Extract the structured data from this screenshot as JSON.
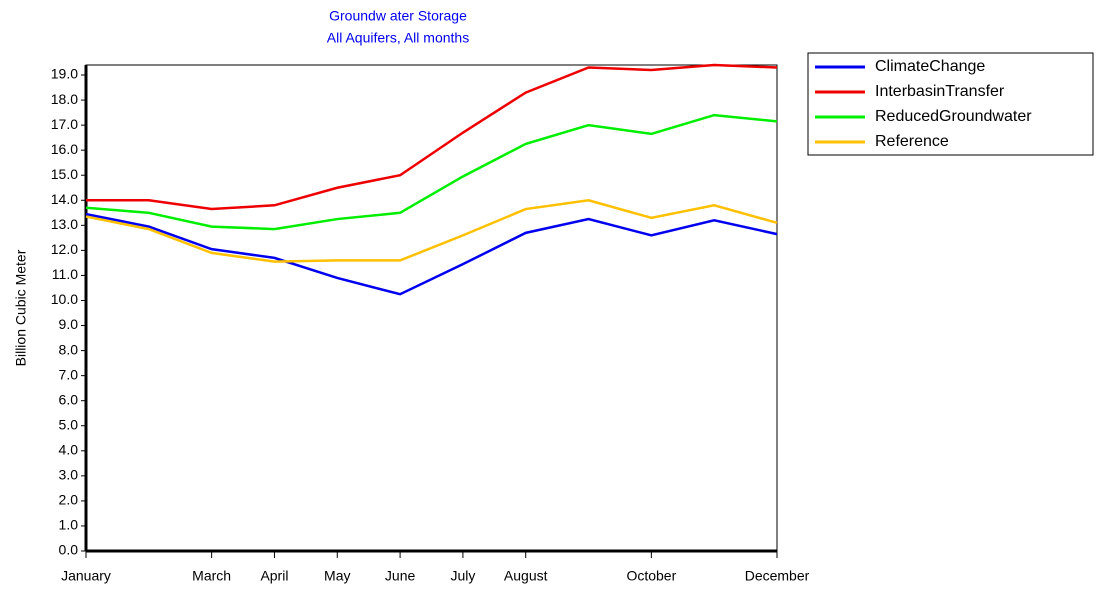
{
  "chart_data": {
    "type": "line",
    "title": "Groundw ater Storage",
    "subtitle": "All Aquifers,  All months",
    "y_label": "Billion Cubic Meter",
    "categories": [
      "January",
      null,
      "March",
      "April",
      "May",
      "June",
      "July",
      "August",
      null,
      "October",
      null,
      "December"
    ],
    "series": [
      {
        "name": "ClimateChange",
        "color": "#0000ee",
        "values": [
          13.45,
          12.95,
          12.05,
          11.7,
          10.9,
          10.25,
          11.45,
          12.7,
          13.25,
          12.6,
          13.2,
          12.65
        ]
      },
      {
        "name": "InterbasinTransfer",
        "color": "#ee0000",
        "values": [
          14.0,
          14.0,
          13.65,
          13.8,
          14.5,
          15.0,
          16.7,
          18.3,
          19.3,
          19.2,
          19.4,
          19.3
        ]
      },
      {
        "name": "ReducedGroundwater",
        "color": "#00ee00",
        "values": [
          13.7,
          13.5,
          12.95,
          12.85,
          13.25,
          13.5,
          14.95,
          16.25,
          17.0,
          16.65,
          17.4,
          17.15
        ]
      },
      {
        "name": "Reference",
        "color": "#ffc000",
        "values": [
          13.35,
          12.85,
          11.9,
          11.55,
          11.6,
          11.6,
          12.6,
          13.65,
          14.0,
          13.3,
          13.8,
          13.1
        ]
      }
    ],
    "ylim": [
      0,
      19.4
    ],
    "yticks": [
      {
        "value": 0,
        "label": "0.0"
      },
      {
        "value": 1,
        "label": "1.0"
      },
      {
        "value": 2,
        "label": "2.0"
      },
      {
        "value": 3,
        "label": "3.0"
      },
      {
        "value": 4,
        "label": "4.0"
      },
      {
        "value": 5,
        "label": "5.0"
      },
      {
        "value": 6,
        "label": "6.0"
      },
      {
        "value": 7,
        "label": "7.0"
      },
      {
        "value": 8,
        "label": "8.0"
      },
      {
        "value": 9,
        "label": "9.0"
      },
      {
        "value": 10,
        "label": "10.0"
      },
      {
        "value": 11,
        "label": "11.0"
      },
      {
        "value": 12,
        "label": "12.0"
      },
      {
        "value": 13,
        "label": "13.0"
      },
      {
        "value": 14,
        "label": "14.0"
      },
      {
        "value": 15,
        "label": "15.0"
      },
      {
        "value": 16,
        "label": "16.0"
      },
      {
        "value": 17,
        "label": "17.0"
      },
      {
        "value": 18,
        "label": "18.0"
      },
      {
        "value": 19,
        "label": "19.0"
      }
    ],
    "grid": false,
    "legend": "right"
  }
}
